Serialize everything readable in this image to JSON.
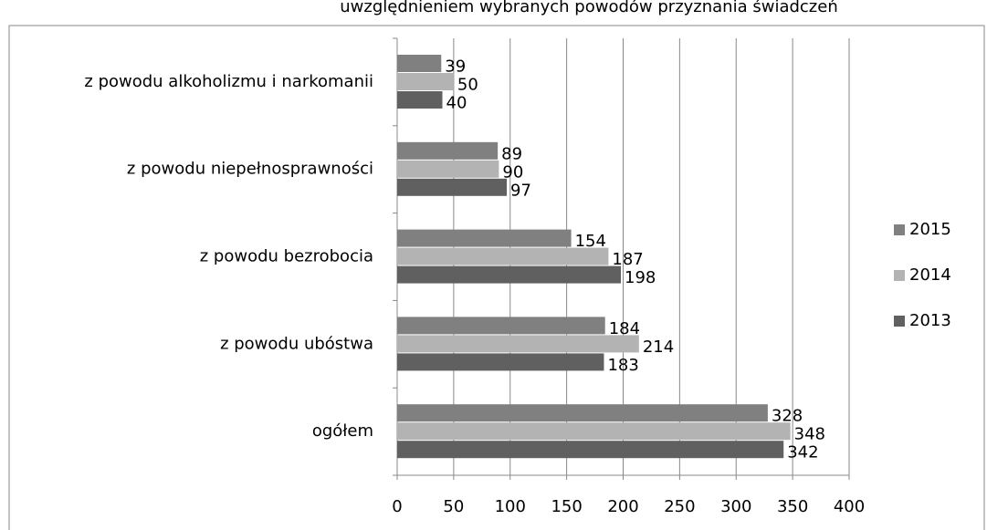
{
  "chart_data": {
    "type": "bar",
    "orientation": "horizontal",
    "title": "uwzględnieniem wybranych powodów przyznania świadczeń",
    "categories": [
      "z powodu alkoholizmu i narkomanii",
      "z powodu niepełnosprawności",
      "z powodu bezrobocia",
      "z powodu ubóstwa",
      "ogółem"
    ],
    "series": [
      {
        "name": "2015",
        "color": "#808080",
        "values": [
          39,
          89,
          154,
          184,
          328
        ]
      },
      {
        "name": "2014",
        "color": "#b3b3b3",
        "values": [
          50,
          90,
          187,
          214,
          348
        ]
      },
      {
        "name": "2013",
        "color": "#606060",
        "values": [
          40,
          97,
          198,
          183,
          342
        ]
      }
    ],
    "xlim": [
      0,
      400
    ],
    "xticks": [
      0,
      50,
      100,
      150,
      200,
      250,
      300,
      350,
      400
    ],
    "grid": true,
    "legend": "right"
  }
}
